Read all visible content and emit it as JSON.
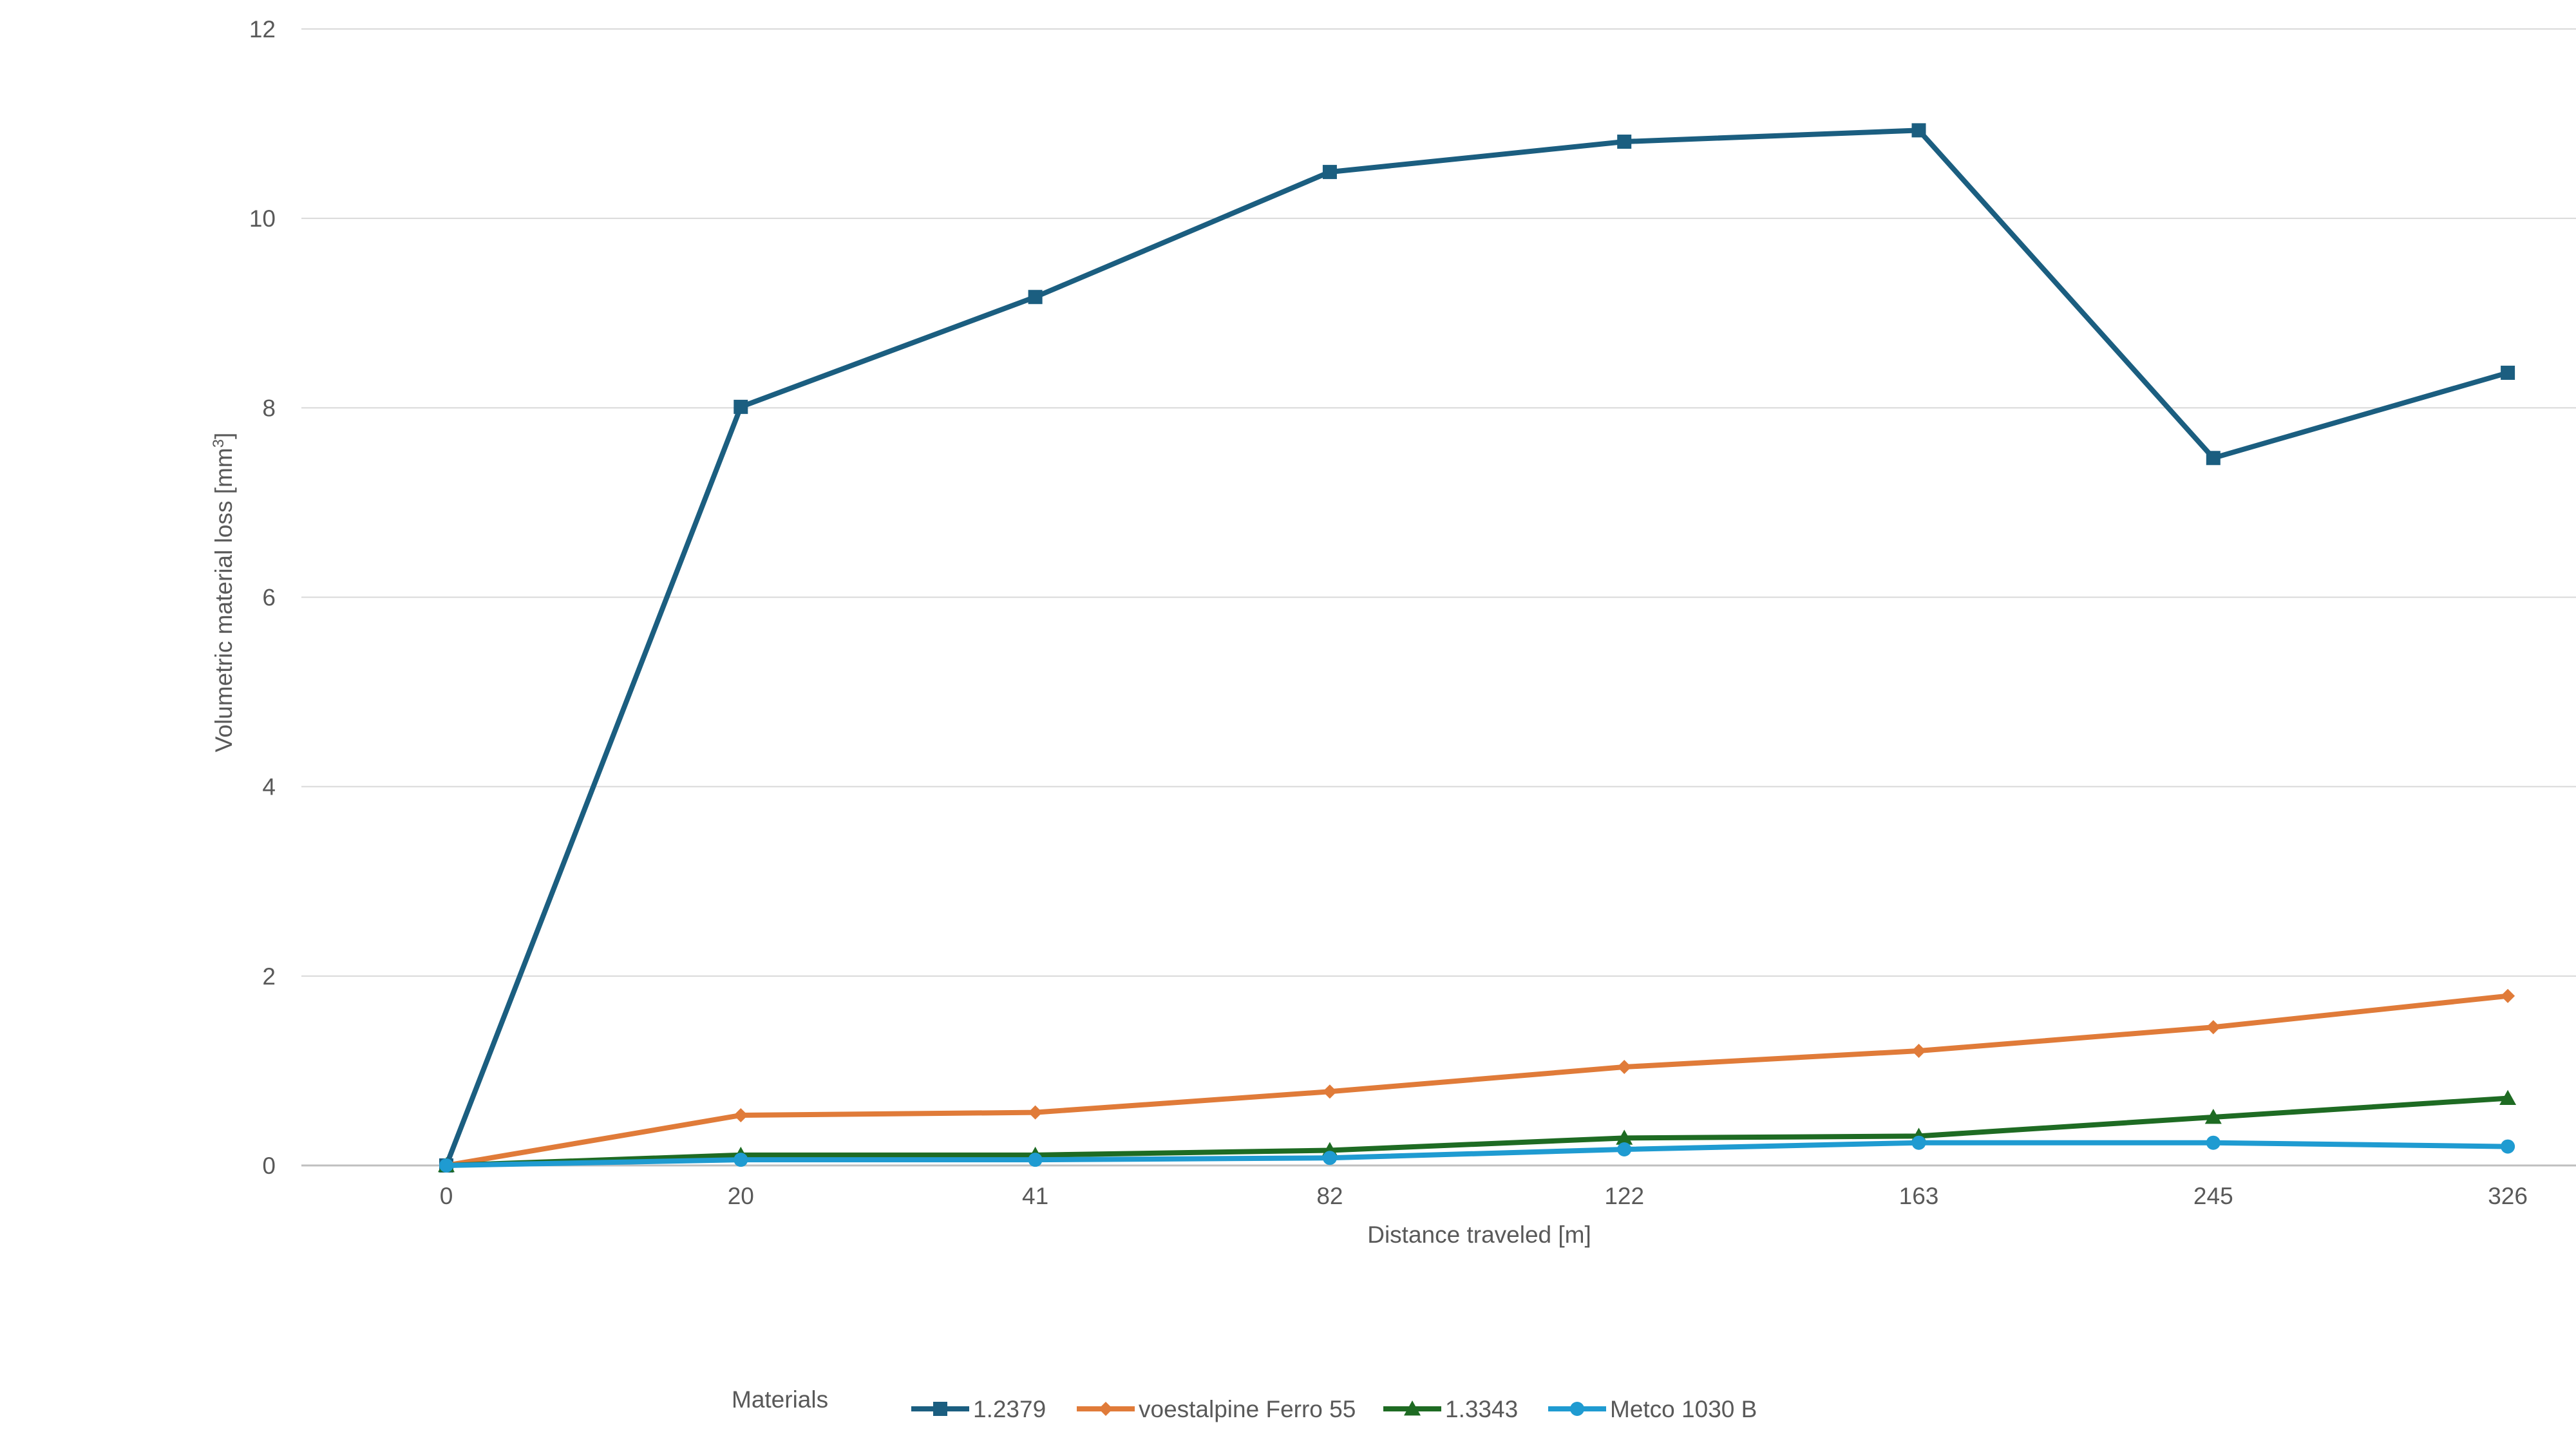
{
  "chart_data": {
    "type": "line",
    "title": "",
    "xlabel": "Distance traveled [m]",
    "ylabel_main": "Volumetric material loss [mm",
    "ylabel_sup": "3",
    "ylabel_tail": "]",
    "categories": [
      "0",
      "20",
      "41",
      "82",
      "122",
      "163",
      "245",
      "326"
    ],
    "ylim": [
      0,
      12
    ],
    "yticks": [
      "0",
      "2",
      "4",
      "6",
      "8",
      "10",
      "12"
    ],
    "grid": true,
    "legend_title": "Materials",
    "legend_position": "bottom",
    "series": [
      {
        "name": "1.2379",
        "color": "#1b5e80",
        "marker": "square",
        "values": [
          0,
          8.01,
          9.17,
          10.49,
          10.81,
          10.93,
          7.47,
          8.37
        ]
      },
      {
        "name": "voestalpine Ferro 55",
        "color": "#e07b39",
        "marker": "diamond",
        "values": [
          0,
          0.53,
          0.56,
          0.78,
          1.04,
          1.21,
          1.46,
          1.79
        ]
      },
      {
        "name": "1.3343",
        "color": "#1e6b23",
        "marker": "triangle",
        "values": [
          0,
          0.11,
          0.11,
          0.16,
          0.29,
          0.31,
          0.51,
          0.71
        ]
      },
      {
        "name": "Metco 1030 B",
        "color": "#1f9bd1",
        "marker": "circle",
        "values": [
          0,
          0.06,
          0.06,
          0.08,
          0.17,
          0.24,
          0.24,
          0.2
        ]
      }
    ]
  }
}
